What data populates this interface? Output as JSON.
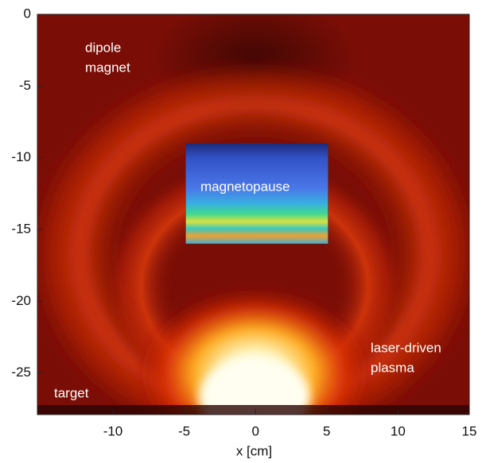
{
  "chart_data": {
    "type": "image",
    "xlabel": "x [cm]",
    "xlim": [
      -15.3,
      15
    ],
    "xticks": [
      -10,
      -5,
      0,
      5,
      10,
      15
    ],
    "ylim": [
      -27.9,
      0
    ],
    "yticks": [
      0,
      -5,
      -10,
      -15,
      -20,
      -25
    ],
    "inset": {
      "xlim": [
        -4.9,
        5.1
      ],
      "ylim": [
        -16,
        -9
      ]
    },
    "annotations": [
      [
        "dipole",
        "magnet"
      ],
      [
        "magnetopause"
      ],
      [
        "laser-driven",
        "plasma"
      ],
      [
        "target"
      ]
    ]
  }
}
